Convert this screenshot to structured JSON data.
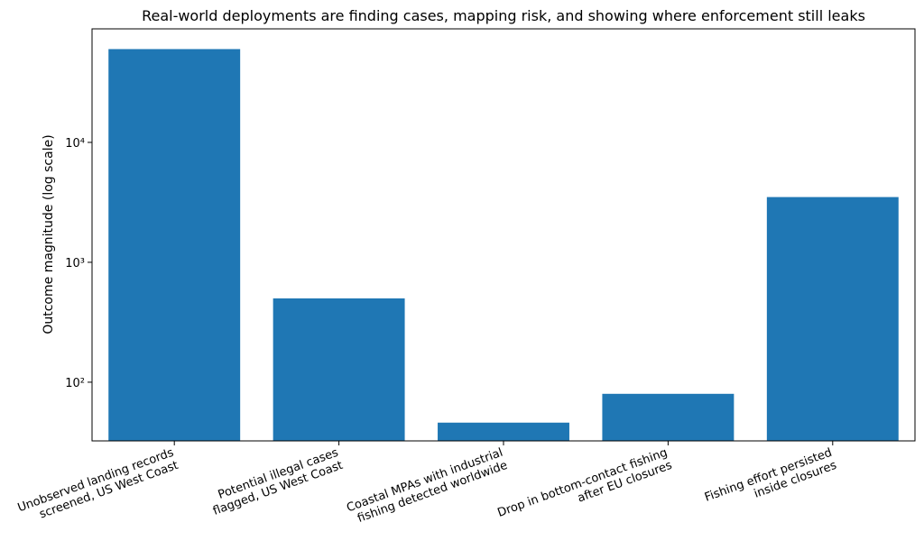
{
  "chart_data": {
    "type": "bar",
    "title": "Real-world deployments are finding cases, mapping risk, and showing where enforcement still leaks",
    "y_label": "Outcome magnitude (log scale)",
    "categories": [
      [
        "Unobserved landing records",
        "screened, US West Coast"
      ],
      [
        "Potential illegal cases",
        "flagged, US West Coast"
      ],
      [
        "Coastal MPAs with industrial",
        "fishing detected worldwide"
      ],
      [
        "Drop in bottom-contact fishing",
        "after EU closures"
      ],
      [
        "Fishing effort persisted",
        "inside closures"
      ]
    ],
    "values": [
      60000,
      500,
      46,
      80,
      3500
    ],
    "color": "#1f77b4",
    "log_scale": true,
    "ylim": [
      32.4,
      88500
    ],
    "yticks": [
      {
        "value": 100,
        "label": "10²"
      },
      {
        "value": 1000,
        "label": "10³"
      },
      {
        "value": 10000,
        "label": "10⁴"
      }
    ],
    "grid": false
  }
}
